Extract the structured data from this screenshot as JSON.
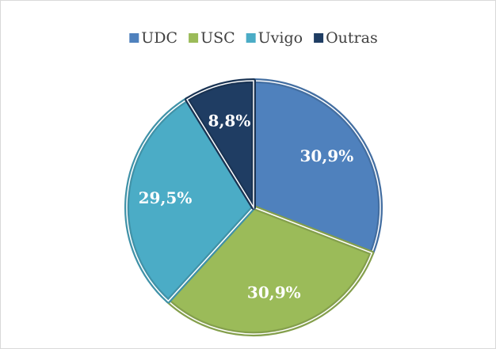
{
  "chart_data": {
    "type": "pie",
    "categories": [
      "UDC",
      "USC",
      "Uvigo",
      "Outras"
    ],
    "values": [
      30.9,
      30.9,
      29.5,
      8.8
    ],
    "value_labels": [
      "30,9%",
      "30,9%",
      "29,5%",
      "8,8%"
    ],
    "colors": [
      "#4f81bd",
      "#9bbb59",
      "#4bacc6",
      "#1f3d63"
    ],
    "legend": "top"
  }
}
